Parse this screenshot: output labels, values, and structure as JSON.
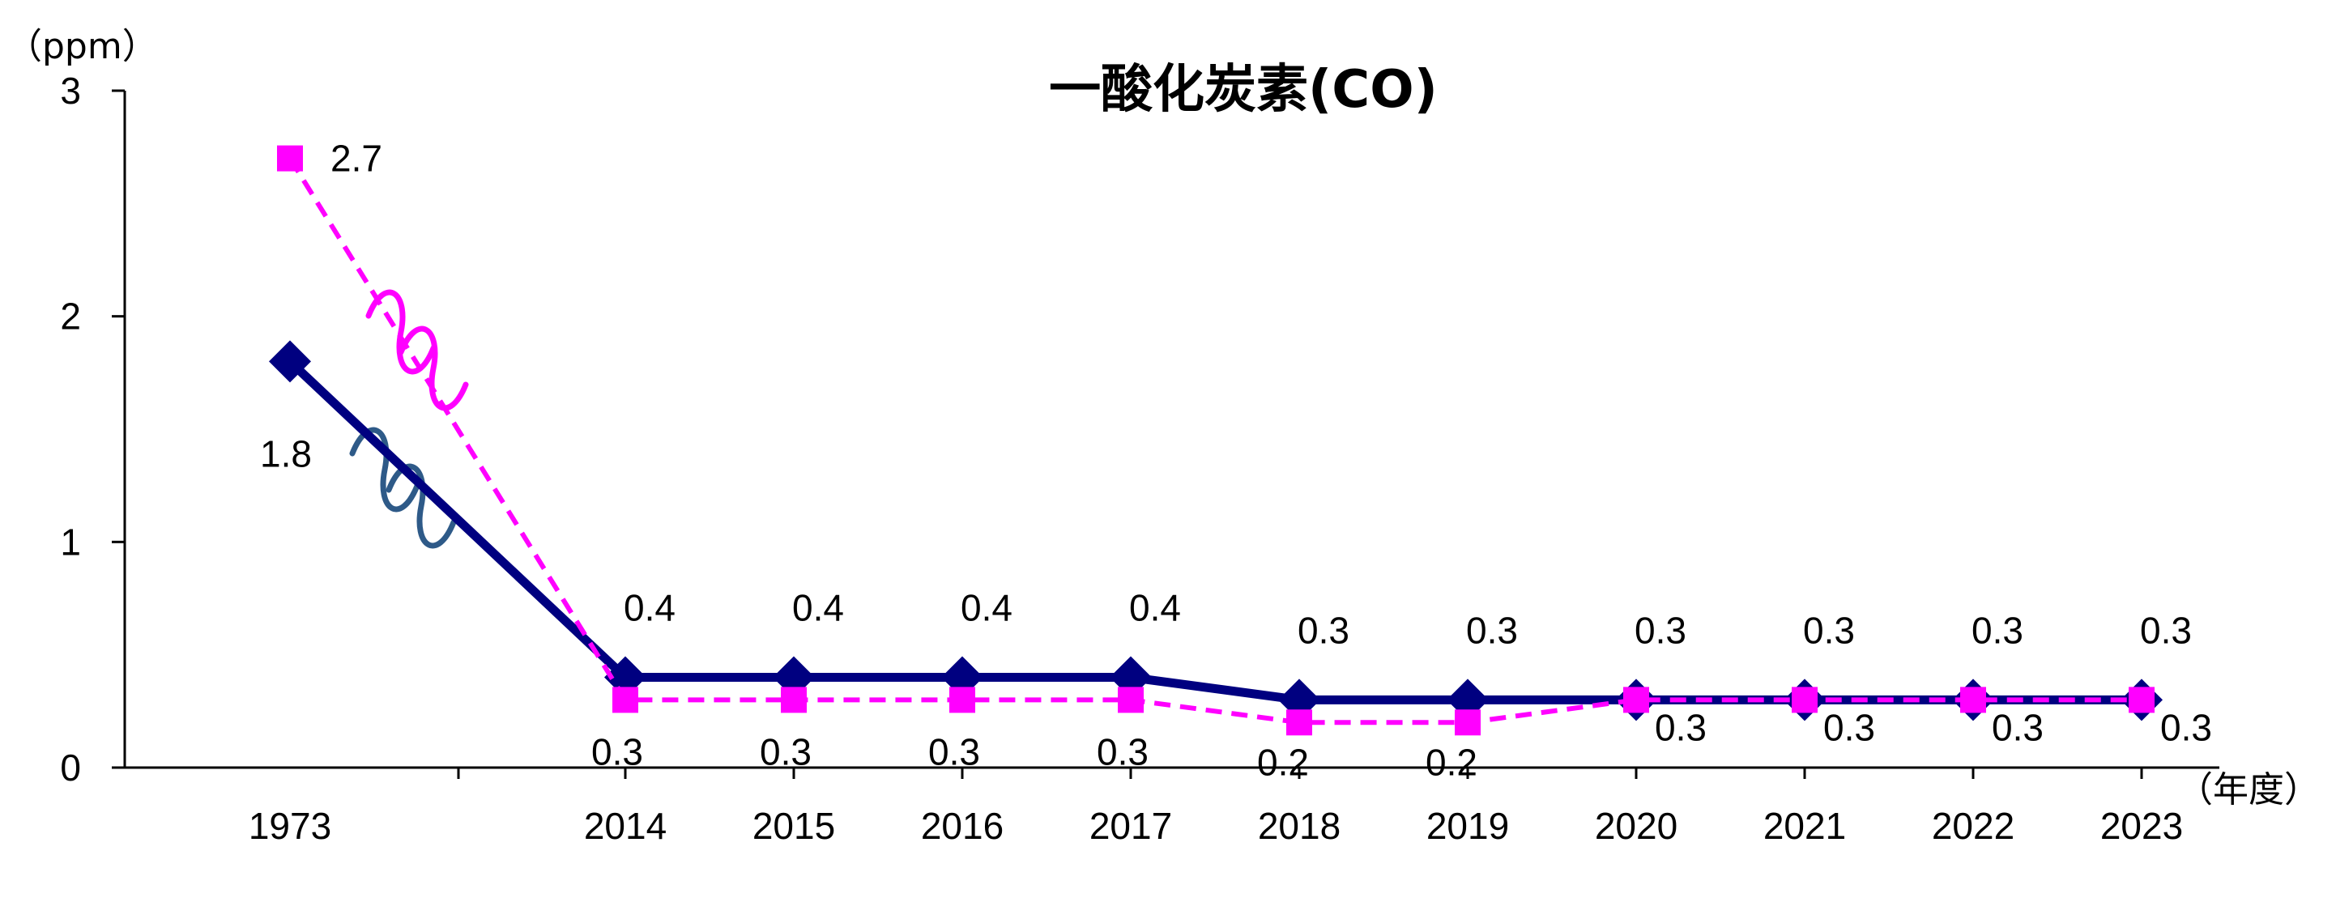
{
  "chart_data": {
    "type": "line",
    "title": "一酸化炭素(CO)",
    "y_unit": "（ppm）",
    "x_unit": "（年度）",
    "categories": [
      "1973",
      "2014",
      "2015",
      "2016",
      "2017",
      "2018",
      "2019",
      "2020",
      "2021",
      "2022",
      "2023"
    ],
    "y_ticks": [
      "0",
      "1",
      "2",
      "3"
    ],
    "ylim": [
      0,
      3
    ],
    "grid": false,
    "legend": "none",
    "axis_break": "between 1973 and 2014",
    "series": [
      {
        "values": [
          1.8,
          0.4,
          0.4,
          0.4,
          0.4,
          0.3,
          0.3,
          0.3,
          0.3,
          0.3,
          0.3
        ],
        "labels": [
          "1.8",
          "0.4",
          "0.4",
          "0.4",
          "0.4",
          "0.3",
          "0.3",
          "0.3",
          "0.3",
          "0.3",
          "0.3"
        ],
        "color": "#000080",
        "marker": "diamond",
        "line_style": "solid"
      },
      {
        "values": [
          2.7,
          0.3,
          0.3,
          0.3,
          0.3,
          0.2,
          0.2,
          0.3,
          0.3,
          0.3,
          0.3
        ],
        "labels": [
          "2.7",
          "0.3",
          "0.3",
          "0.3",
          "0.3",
          "0.2",
          "0.2",
          "0.3",
          "0.3",
          "0.3",
          "0.3"
        ],
        "color": "#FF00FF",
        "marker": "square",
        "line_style": "dashed"
      }
    ],
    "break_mark_colors": [
      "#FF00FF",
      "#2E5A88"
    ]
  }
}
